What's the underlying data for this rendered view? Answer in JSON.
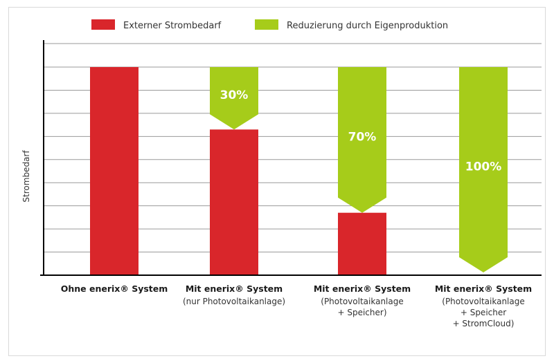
{
  "chart_data": {
    "type": "bar",
    "ylabel": "Strombedarf",
    "grid": true,
    "legend_position": "top",
    "colors": {
      "external": "#d9262b",
      "reduction": "#a6cc1a"
    },
    "legend": [
      {
        "key": "external",
        "label": "Externer Strombedarf"
      },
      {
        "key": "reduction",
        "label": "Reduzierung durch Eigenproduktion"
      }
    ],
    "categories": [
      {
        "title": "Ohne enerix® System",
        "subtitle": []
      },
      {
        "title": "Mit enerix® System",
        "subtitle": [
          "(nur Photovoltaikanlage)"
        ]
      },
      {
        "title": "Mit enerix® System",
        "subtitle": [
          "(Photovoltaikanlage",
          "+ Speicher)"
        ]
      },
      {
        "title": "Mit enerix® System",
        "subtitle": [
          "(Photovoltaikanlage",
          "+ Speicher",
          "+ StromCloud)"
        ]
      }
    ],
    "series": [
      {
        "name": "Externer Strombedarf",
        "values": [
          100,
          70,
          30,
          0
        ]
      },
      {
        "name": "Reduzierung durch Eigenproduktion",
        "values": [
          0,
          30,
          70,
          100
        ]
      }
    ],
    "reduction_labels": [
      "",
      "30%",
      "70%",
      "100%"
    ],
    "ylim": [
      0,
      100
    ]
  }
}
